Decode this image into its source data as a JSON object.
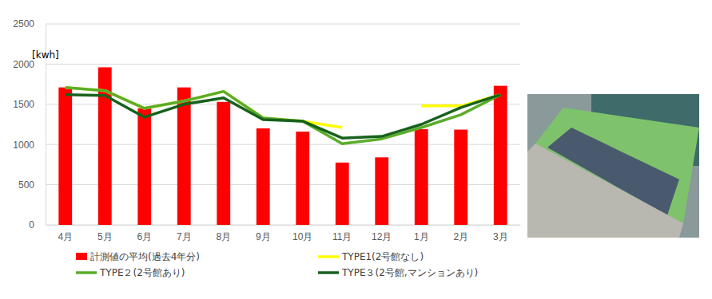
{
  "chart_data": {
    "type": "bar",
    "y_label": "[kwh]",
    "categories": [
      "4月",
      "5月",
      "6月",
      "7月",
      "8月",
      "9月",
      "10月",
      "11月",
      "12月",
      "1月",
      "2月",
      "3月"
    ],
    "ylim": [
      0,
      2500
    ],
    "yticks": [
      0,
      500,
      1000,
      1500,
      2000,
      2500
    ],
    "grid": true,
    "legend": "bottom",
    "series": [
      {
        "name": "計測値の平均(過去4年分)",
        "type": "bar",
        "color": "#ff0000",
        "values": [
          1710,
          1960,
          1450,
          1710,
          1530,
          1200,
          1160,
          775,
          840,
          1190,
          1185,
          1730
        ]
      },
      {
        "name": "TYPE1(2号館なし)",
        "type": "line",
        "color": "#ffff00",
        "values": [
          1710,
          1670,
          1450,
          1540,
          1660,
          1330,
          1290,
          1210,
          null,
          1480,
          1480,
          1620
        ]
      },
      {
        "name": "TYPE２(2号館あり)",
        "type": "line",
        "color": "#5aad2a",
        "values": [
          1710,
          1670,
          1450,
          1540,
          1660,
          1330,
          1290,
          1010,
          1070,
          1210,
          1370,
          1620
        ]
      },
      {
        "name": "TYPE３(2号館,マンションあり)",
        "type": "line",
        "color": "#17621c",
        "values": [
          1620,
          1610,
          1340,
          1500,
          1580,
          1310,
          1290,
          1080,
          1100,
          1250,
          1460,
          1620
        ]
      }
    ]
  }
}
